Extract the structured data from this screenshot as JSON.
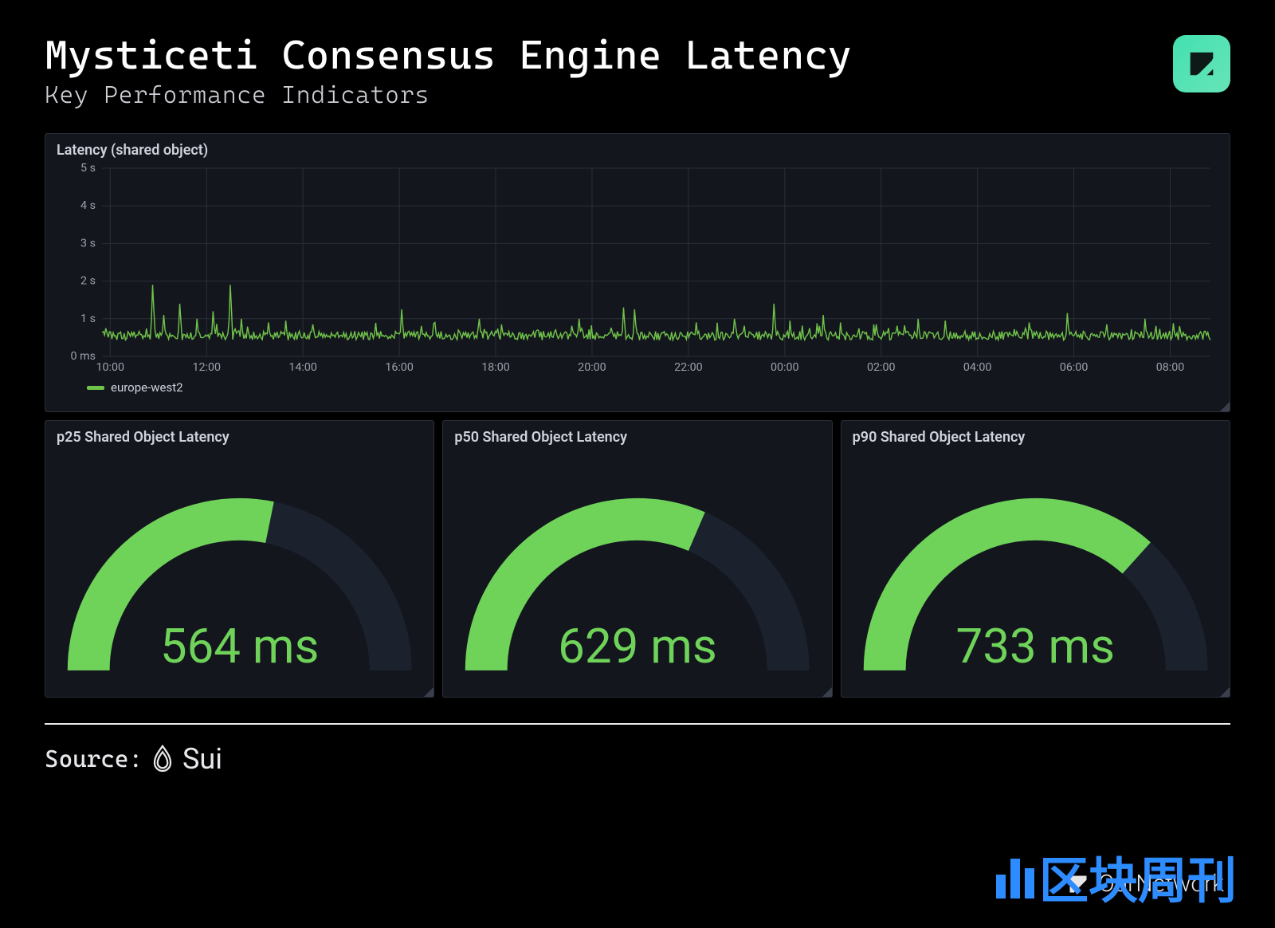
{
  "header": {
    "title": "Mysticeti Consensus Engine Latency",
    "subtitle": "Key Performance Indicators"
  },
  "colors": {
    "panel_bg": "#14161d",
    "panel_border": "#2b2f3a",
    "grid": "#2a2e39",
    "axis_text": "#9aa0ac",
    "series_green": "#70c34a",
    "gauge_fill": "#6fd35a",
    "gauge_track": "#1b222e",
    "logo_gradient_from": "#44e0b0",
    "logo_gradient_to": "#66e5b8",
    "waterline_blue": "#2d8cff"
  },
  "line_chart": {
    "title": "Latency (shared object)",
    "type": "line",
    "ylim": [
      0,
      5
    ],
    "y_ticks": [
      "5 s",
      "4 s",
      "3 s",
      "2 s",
      "1 s",
      "0 ms"
    ],
    "x_ticks": [
      "10:00",
      "12:00",
      "14:00",
      "16:00",
      "18:00",
      "20:00",
      "22:00",
      "00:00",
      "02:00",
      "04:00",
      "06:00",
      "08:00"
    ],
    "legend": {
      "label": "europe-west2",
      "color": "#70c34a"
    },
    "baseline": 0.55,
    "noise": 0.12,
    "spikes": [
      {
        "x": 0.045,
        "h": 1.9
      },
      {
        "x": 0.055,
        "h": 1.1
      },
      {
        "x": 0.07,
        "h": 1.4
      },
      {
        "x": 0.085,
        "h": 1.0
      },
      {
        "x": 0.1,
        "h": 1.2
      },
      {
        "x": 0.115,
        "h": 1.9
      },
      {
        "x": 0.125,
        "h": 1.0
      },
      {
        "x": 0.15,
        "h": 0.9
      },
      {
        "x": 0.165,
        "h": 0.95
      },
      {
        "x": 0.19,
        "h": 0.85
      },
      {
        "x": 0.27,
        "h": 1.25
      },
      {
        "x": 0.3,
        "h": 0.9
      },
      {
        "x": 0.34,
        "h": 1.0
      },
      {
        "x": 0.36,
        "h": 0.85
      },
      {
        "x": 0.43,
        "h": 1.0
      },
      {
        "x": 0.47,
        "h": 1.3
      },
      {
        "x": 0.48,
        "h": 1.25
      },
      {
        "x": 0.535,
        "h": 0.9
      },
      {
        "x": 0.57,
        "h": 1.0
      },
      {
        "x": 0.605,
        "h": 1.4
      },
      {
        "x": 0.62,
        "h": 0.95
      },
      {
        "x": 0.65,
        "h": 1.1
      },
      {
        "x": 0.665,
        "h": 0.9
      },
      {
        "x": 0.695,
        "h": 0.85
      },
      {
        "x": 0.735,
        "h": 1.0
      },
      {
        "x": 0.76,
        "h": 0.95
      },
      {
        "x": 0.835,
        "h": 0.9
      },
      {
        "x": 0.87,
        "h": 1.15
      },
      {
        "x": 0.905,
        "h": 0.85
      },
      {
        "x": 0.94,
        "h": 1.0
      },
      {
        "x": 0.965,
        "h": 0.88
      }
    ]
  },
  "gauges": [
    {
      "title": "p25 Shared Object Latency",
      "value_text": "564 ms",
      "fraction": 0.564
    },
    {
      "title": "p50 Shared Object Latency",
      "value_text": "629 ms",
      "fraction": 0.629
    },
    {
      "title": "p90 Shared Object Latency",
      "value_text": "733 ms",
      "fraction": 0.733
    }
  ],
  "footer": {
    "source_label": "Source:",
    "source_name": "Sui",
    "attribution": "OurNetwork",
    "watermark_cjk": "区块周刊"
  }
}
